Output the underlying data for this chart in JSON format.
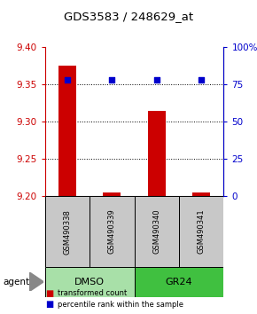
{
  "title": "GDS3583 / 248629_at",
  "samples": [
    "GSM490338",
    "GSM490339",
    "GSM490340",
    "GSM490341"
  ],
  "bar_values": [
    9.375,
    9.205,
    9.315,
    9.205
  ],
  "percentile_values": [
    78,
    78,
    78,
    78
  ],
  "ylim_left": [
    9.2,
    9.4
  ],
  "ylim_right": [
    0,
    100
  ],
  "yticks_left": [
    9.2,
    9.25,
    9.3,
    9.35,
    9.4
  ],
  "yticks_right": [
    0,
    25,
    50,
    75,
    100
  ],
  "ytick_right_labels": [
    "0",
    "25",
    "50",
    "75",
    "100%"
  ],
  "bar_color": "#cc0000",
  "dot_color": "#0000cc",
  "bar_base": 9.2,
  "legend_red": "transformed count",
  "legend_blue": "percentile rank within the sample",
  "agent_label": "agent",
  "axis_color_left": "#cc0000",
  "axis_color_right": "#0000cc",
  "bg_sample_label": "#c8c8c8",
  "bg_group_dmso": "#a8e0a8",
  "bg_group_gr24": "#40c040",
  "group_spans": [
    [
      0,
      2,
      "DMSO",
      "#a8e0a8"
    ],
    [
      2,
      4,
      "GR24",
      "#40c040"
    ]
  ]
}
